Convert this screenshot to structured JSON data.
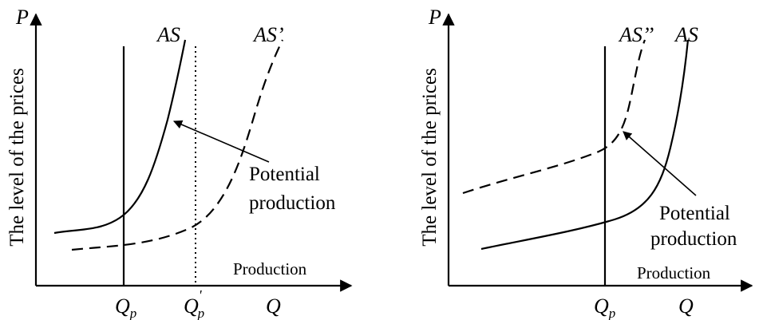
{
  "left_panel": {
    "y_axis_letter": "P",
    "y_axis_label": "The level of the prices",
    "x_axis_letter": "Q",
    "x_axis_label": "Production",
    "curve_as": "AS",
    "curve_as_shifted": "AS’",
    "tick_qp_main": "Q",
    "tick_qp_sub": "p",
    "tick_qp2_main": "Q",
    "tick_qp2_prime": "'",
    "tick_qp2_sub": "p",
    "annotation_line1": "Potential",
    "annotation_line2": "production"
  },
  "right_panel": {
    "y_axis_letter": "P",
    "y_axis_label": "The level of the prices",
    "x_axis_letter": "Q",
    "x_axis_label": "Production",
    "curve_as": "AS",
    "curve_as_shifted": "AS’’",
    "tick_qp_main": "Q",
    "tick_qp_sub": "p",
    "annotation_line1": "Potential",
    "annotation_line2": "production"
  }
}
